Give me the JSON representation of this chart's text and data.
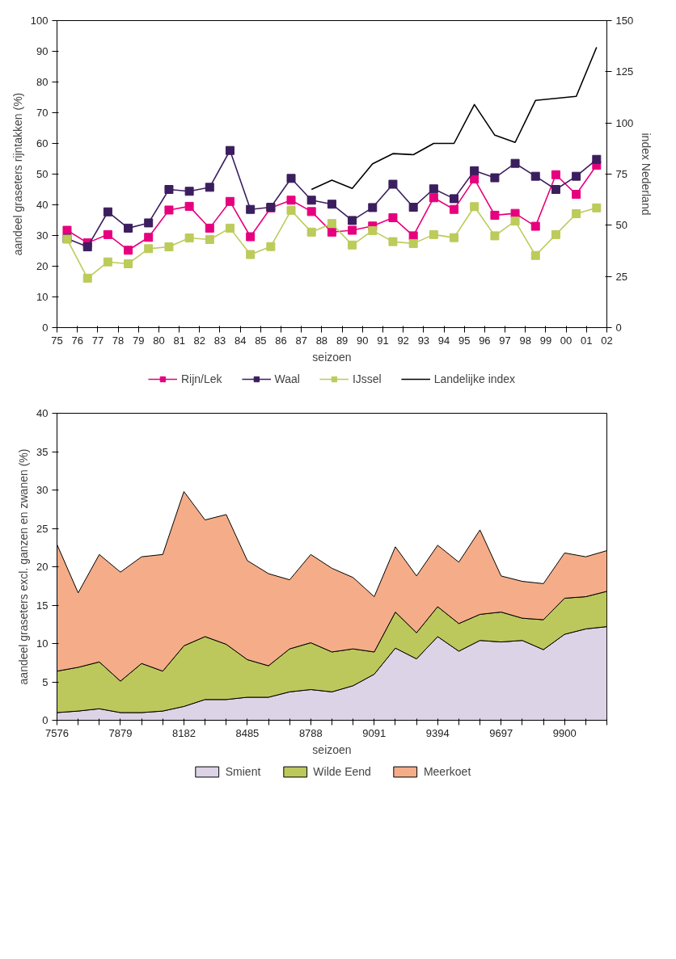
{
  "chart_data": [
    {
      "type": "line",
      "xlabel": "seizoen",
      "ylabel": "aandeel graseters rijntakken (%)",
      "y2label": "index Nederland",
      "xlim": [
        "1975",
        "2002"
      ],
      "xticks": [
        {
          "value": "1975",
          "label": "75"
        },
        {
          "value": "1976",
          "label": "76"
        },
        {
          "value": "1977",
          "label": "77"
        },
        {
          "value": "1978",
          "label": "78"
        },
        {
          "value": "1979",
          "label": "79"
        },
        {
          "value": "1980",
          "label": "80"
        },
        {
          "value": "1981",
          "label": "81"
        },
        {
          "value": "1982",
          "label": "82"
        },
        {
          "value": "1983",
          "label": "83"
        },
        {
          "value": "1984",
          "label": "84"
        },
        {
          "value": "1985",
          "label": "85"
        },
        {
          "value": "1986",
          "label": "86"
        },
        {
          "value": "1987",
          "label": "87"
        },
        {
          "value": "1988",
          "label": "88"
        },
        {
          "value": "1989",
          "label": "89"
        },
        {
          "value": "1990",
          "label": "90"
        },
        {
          "value": "1991",
          "label": "91"
        },
        {
          "value": "1992",
          "label": "92"
        },
        {
          "value": "1993",
          "label": "93"
        },
        {
          "value": "1994",
          "label": "94"
        },
        {
          "value": "1995",
          "label": "95"
        },
        {
          "value": "1996",
          "label": "96"
        },
        {
          "value": "1997",
          "label": "97"
        },
        {
          "value": "1998",
          "label": "98"
        },
        {
          "value": "1999",
          "label": "99"
        },
        {
          "value": "2000",
          "label": "00"
        },
        {
          "value": "2001",
          "label": "01"
        },
        {
          "value": "2002",
          "label": "02"
        }
      ],
      "ylim": [
        0,
        100
      ],
      "yticks": [
        0,
        10,
        20,
        30,
        40,
        50,
        60,
        70,
        80,
        90,
        100
      ],
      "y2lim": [
        0,
        150
      ],
      "y2ticks": [
        0,
        25,
        50,
        75,
        100,
        125,
        150
      ],
      "x": [
        "1975-07",
        "1976-07",
        "1977-07",
        "1978-07",
        "1979-07",
        "1980-07",
        "1981-07",
        "1982-07",
        "1983-07",
        "1984-07",
        "1985-07",
        "1986-07",
        "1987-07",
        "1988-07",
        "1989-07",
        "1990-07",
        "1991-07",
        "1992-07",
        "1993-07",
        "1994-07",
        "1995-07",
        "1996-07",
        "1997-07",
        "1998-07",
        "1999-07",
        "2000-07",
        "2001-07"
      ],
      "marker": "square",
      "grid": false,
      "legend": "bottom",
      "series": [
        {
          "name": "Rijn/Lek",
          "color": "#e6007e",
          "values": [
            31.7,
            27.6,
            30.3,
            25.2,
            29.4,
            38.3,
            39.5,
            32.4,
            41.1,
            29.6,
            39.0,
            41.5,
            37.8,
            31.1,
            31.7,
            33.1,
            35.8,
            29.9,
            42.3,
            38.5,
            48.4,
            36.6,
            37.2,
            33.0,
            49.8,
            43.4,
            52.9
          ]
        },
        {
          "name": "Waal",
          "color": "#3b1e5e",
          "values": [
            29.0,
            26.3,
            37.7,
            32.4,
            34.1,
            45.0,
            44.4,
            45.7,
            57.7,
            38.5,
            39.2,
            48.6,
            41.5,
            40.2,
            34.9,
            39.1,
            46.7,
            39.2,
            45.2,
            42.0,
            51.1,
            48.8,
            53.5,
            49.3,
            45.0,
            49.3,
            54.8
          ]
        },
        {
          "name": "IJssel",
          "color": "#bccb5a",
          "values": [
            28.8,
            16.1,
            21.4,
            20.8,
            25.7,
            26.3,
            29.2,
            28.7,
            32.4,
            23.8,
            26.4,
            38.2,
            31.1,
            33.9,
            26.9,
            31.6,
            28.0,
            27.4,
            30.3,
            29.3,
            39.4,
            29.9,
            34.7,
            23.5,
            30.3,
            37.1,
            39.0
          ]
        },
        {
          "name": "Landelijke index",
          "color": "#000000",
          "axis": "y2",
          "marker": "none",
          "x": [
            "1987-07",
            "1988-07",
            "1989-07",
            "1990-07",
            "1991-07",
            "1992-07",
            "1993-07",
            "1994-07",
            "1995-07",
            "1996-07",
            "1997-07",
            "1998-07",
            "1999-07",
            "2000-07",
            "2001-07"
          ],
          "values": [
            67.5,
            72,
            68,
            80,
            85,
            84.5,
            90,
            90,
            109,
            94,
            90.5,
            111,
            112,
            113,
            137
          ]
        }
      ]
    },
    {
      "type": "area",
      "stacked": true,
      "xlabel": "seizoen",
      "ylabel": "aandeel graseters excl. ganzen en zwanen (%)",
      "categories": [
        "7576",
        null,
        null,
        "7879",
        null,
        null,
        "8182",
        null,
        null,
        "8485",
        null,
        null,
        "8788",
        null,
        null,
        "9091",
        null,
        null,
        "9394",
        null,
        null,
        "9697",
        null,
        null,
        "9900",
        null,
        null
      ],
      "ylim": [
        0,
        40
      ],
      "yticks": [
        0,
        5,
        10,
        15,
        20,
        25,
        30,
        35,
        40
      ],
      "grid": false,
      "legend": "bottom",
      "series": [
        {
          "name": "Smient",
          "color": "#dcd3e6",
          "values": [
            1.0,
            1.2,
            1.5,
            1.0,
            1.0,
            1.2,
            1.8,
            2.7,
            2.7,
            3.0,
            3.0,
            3.7,
            4.0,
            3.7,
            4.5,
            6.0,
            9.4,
            8.0,
            10.9,
            9.0,
            10.4,
            10.2,
            10.4,
            9.2,
            11.2,
            11.9,
            12.2
          ]
        },
        {
          "name": "Wilde Eend",
          "color": "#bcc85c",
          "values": [
            5.4,
            5.7,
            6.1,
            4.1,
            6.4,
            5.2,
            7.9,
            8.2,
            7.2,
            4.9,
            4.1,
            5.6,
            6.1,
            5.2,
            4.8,
            2.9,
            4.7,
            3.4,
            3.9,
            3.6,
            3.4,
            3.9,
            2.9,
            3.9,
            4.7,
            4.2,
            4.6
          ]
        },
        {
          "name": "Meerkoet",
          "color": "#f4ad88",
          "values": [
            16.5,
            9.7,
            14.0,
            14.2,
            13.9,
            15.2,
            20.1,
            15.2,
            16.9,
            12.9,
            12.0,
            9.0,
            11.5,
            10.9,
            9.3,
            7.2,
            8.5,
            7.4,
            8.0,
            8.0,
            11.0,
            4.7,
            4.8,
            4.7,
            5.9,
            5.2,
            5.3
          ]
        }
      ]
    }
  ]
}
